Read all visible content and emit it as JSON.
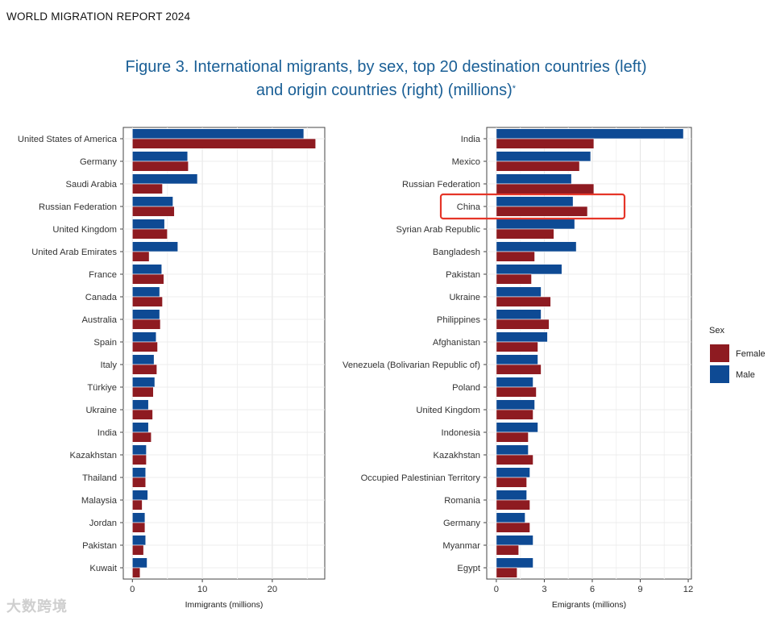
{
  "header": "WORLD MIGRATION REPORT 2024",
  "title_line1": "Figure 3. International migrants, by sex, top 20 destination countries (left)",
  "title_line2": "and origin countries (right) (millions)",
  "title_mark": "*",
  "watermark": "大数跨境",
  "colors": {
    "female": "#8e1b21",
    "male": "#0e4a94",
    "highlight": "#e53528"
  },
  "legend": {
    "title": "Sex",
    "items": [
      "Female",
      "Male"
    ]
  },
  "chart_data": [
    {
      "type": "bar",
      "orientation": "horizontal",
      "xlabel": "Immigrants (millions)",
      "xlim": [
        -1.3,
        27.5
      ],
      "xticks": [
        0,
        10,
        20
      ],
      "categories": [
        "United States of America",
        "Germany",
        "Saudi Arabia",
        "Russian Federation",
        "United Kingdom",
        "United Arab Emirates",
        "France",
        "Canada",
        "Australia",
        "Spain",
        "Italy",
        "Türkiye",
        "Ukraine",
        "India",
        "Kazakhstan",
        "Thailand",
        "Malaysia",
        "Jordan",
        "Pakistan",
        "Kuwait"
      ],
      "series": [
        {
          "name": "Male",
          "values": [
            24.5,
            7.9,
            9.3,
            5.8,
            4.6,
            6.5,
            4.2,
            3.9,
            3.9,
            3.4,
            3.1,
            3.2,
            2.3,
            2.3,
            2.0,
            1.9,
            2.2,
            1.8,
            1.9,
            2.1
          ]
        },
        {
          "name": "Female",
          "values": [
            26.2,
            8.0,
            4.3,
            6.0,
            5.0,
            2.4,
            4.5,
            4.3,
            4.0,
            3.6,
            3.5,
            3.0,
            2.9,
            2.7,
            2.0,
            1.9,
            1.4,
            1.8,
            1.6,
            1.1
          ]
        }
      ]
    },
    {
      "type": "bar",
      "orientation": "horizontal",
      "xlabel": "Emigrants (millions)",
      "xlim": [
        -0.6,
        12.2
      ],
      "xticks": [
        0,
        3,
        6,
        9,
        12
      ],
      "categories": [
        "India",
        "Mexico",
        "Russian Federation",
        "China",
        "Syrian Arab Republic",
        "Bangladesh",
        "Pakistan",
        "Ukraine",
        "Philippines",
        "Afghanistan",
        "Venezuela (Bolivarian Republic of)",
        "Poland",
        "United Kingdom",
        "Indonesia",
        "Kazakhstan",
        "Occupied Palestinian Territory",
        "Romania",
        "Germany",
        "Myanmar",
        "Egypt"
      ],
      "highlighted": "China",
      "series": [
        {
          "name": "Male",
          "values": [
            11.7,
            5.9,
            4.7,
            4.8,
            4.9,
            5.0,
            4.1,
            2.8,
            2.8,
            3.2,
            2.6,
            2.3,
            2.4,
            2.6,
            2.0,
            2.1,
            1.9,
            1.8,
            2.3,
            2.3
          ]
        },
        {
          "name": "Female",
          "values": [
            6.1,
            5.2,
            6.1,
            5.7,
            3.6,
            2.4,
            2.2,
            3.4,
            3.3,
            2.6,
            2.8,
            2.5,
            2.3,
            2.0,
            2.3,
            1.9,
            2.1,
            2.1,
            1.4,
            1.3
          ]
        }
      ]
    }
  ]
}
